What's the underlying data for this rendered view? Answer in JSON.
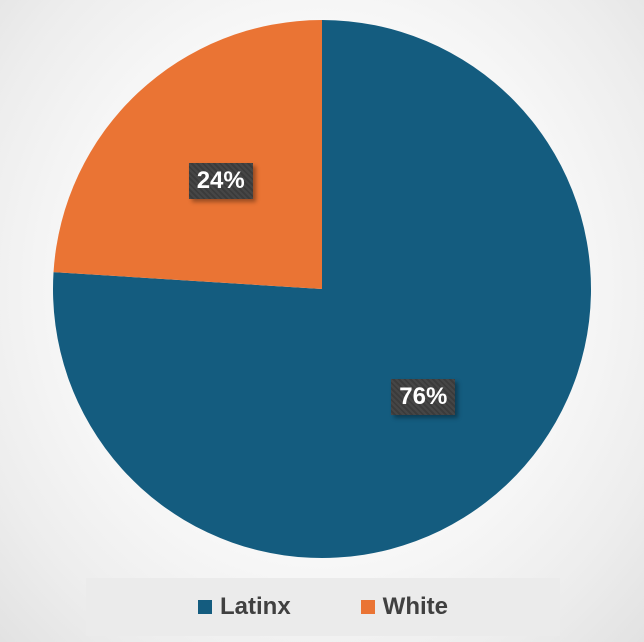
{
  "chart_data": {
    "type": "pie",
    "categories": [
      "Latinx",
      "White"
    ],
    "values": [
      76,
      24
    ],
    "labels": [
      "76%",
      "24%"
    ],
    "colors": [
      "#145c7f",
      "#ea7434"
    ],
    "legend_position": "bottom",
    "start_angle_deg": 0,
    "direction": "clockwise"
  }
}
